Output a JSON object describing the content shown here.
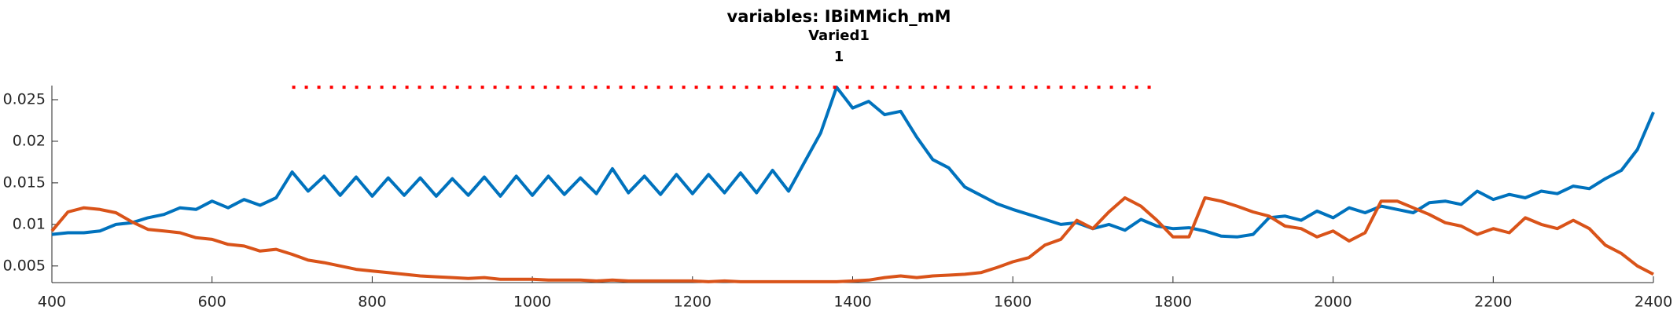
{
  "chart_data": {
    "type": "line",
    "title": "variables: IBiMMich_mM",
    "subtitle": "Varied1",
    "subtitle2": "1",
    "x": [
      400,
      420,
      440,
      460,
      480,
      500,
      520,
      540,
      560,
      580,
      600,
      620,
      640,
      660,
      680,
      700,
      720,
      740,
      760,
      780,
      800,
      820,
      840,
      860,
      880,
      900,
      920,
      940,
      960,
      980,
      1000,
      1020,
      1040,
      1060,
      1080,
      1100,
      1120,
      1140,
      1160,
      1180,
      1200,
      1220,
      1240,
      1260,
      1280,
      1300,
      1320,
      1340,
      1360,
      1380,
      1400,
      1420,
      1440,
      1460,
      1480,
      1500,
      1520,
      1540,
      1560,
      1580,
      1600,
      1620,
      1640,
      1660,
      1680,
      1700,
      1720,
      1740,
      1760,
      1780,
      1800,
      1820,
      1840,
      1860,
      1880,
      1900,
      1920,
      1940,
      1960,
      1980,
      2000,
      2020,
      2040,
      2060,
      2080,
      2100,
      2120,
      2140,
      2160,
      2180,
      2200,
      2220,
      2240,
      2260,
      2280,
      2300,
      2320,
      2340,
      2360,
      2380,
      2400
    ],
    "series": [
      {
        "color": "#0072BD",
        "linestyle": "solid",
        "values": [
          0.0088,
          0.009,
          0.009,
          0.0092,
          0.01,
          0.0102,
          0.0108,
          0.0112,
          0.012,
          0.0118,
          0.0128,
          0.012,
          0.013,
          0.0123,
          0.0132,
          0.0163,
          0.014,
          0.0158,
          0.0135,
          0.0157,
          0.0134,
          0.0156,
          0.0135,
          0.0156,
          0.0134,
          0.0155,
          0.0135,
          0.0157,
          0.0134,
          0.0158,
          0.0135,
          0.0158,
          0.0136,
          0.0156,
          0.0137,
          0.0167,
          0.0138,
          0.0158,
          0.0136,
          0.016,
          0.0137,
          0.016,
          0.0138,
          0.0162,
          0.0138,
          0.0165,
          0.014,
          0.0175,
          0.021,
          0.0265,
          0.024,
          0.0248,
          0.0232,
          0.0236,
          0.0205,
          0.0178,
          0.0168,
          0.0145,
          0.0135,
          0.0125,
          0.0118,
          0.0112,
          0.0106,
          0.01,
          0.0102,
          0.0095,
          0.01,
          0.0093,
          0.0106,
          0.0098,
          0.0095,
          0.0096,
          0.0092,
          0.0086,
          0.0085,
          0.0088,
          0.0108,
          0.011,
          0.0105,
          0.0116,
          0.0108,
          0.012,
          0.0114,
          0.0122,
          0.0118,
          0.0114,
          0.0126,
          0.0128,
          0.0124,
          0.014,
          0.013,
          0.0136,
          0.0132,
          0.014,
          0.0137,
          0.0146,
          0.0143,
          0.0155,
          0.0165,
          0.019,
          0.0235
        ]
      },
      {
        "color": "#D95319",
        "linestyle": "solid",
        "values": [
          0.0092,
          0.0115,
          0.012,
          0.0118,
          0.0114,
          0.0103,
          0.0094,
          0.0092,
          0.009,
          0.0084,
          0.0082,
          0.0076,
          0.0074,
          0.0068,
          0.007,
          0.0064,
          0.0057,
          0.0054,
          0.005,
          0.0046,
          0.0044,
          0.0042,
          0.004,
          0.0038,
          0.0037,
          0.0036,
          0.0035,
          0.0036,
          0.0034,
          0.0034,
          0.0034,
          0.0033,
          0.0033,
          0.0033,
          0.0032,
          0.0033,
          0.0032,
          0.0032,
          0.0032,
          0.0032,
          0.0032,
          0.0031,
          0.0032,
          0.0031,
          0.0031,
          0.0031,
          0.0031,
          0.0031,
          0.0031,
          0.0031,
          0.0032,
          0.0033,
          0.0036,
          0.0038,
          0.0036,
          0.0038,
          0.0039,
          0.004,
          0.0042,
          0.0048,
          0.0055,
          0.006,
          0.0075,
          0.0082,
          0.0105,
          0.0095,
          0.0115,
          0.0132,
          0.0122,
          0.0105,
          0.0085,
          0.0085,
          0.0132,
          0.0128,
          0.0122,
          0.0115,
          0.011,
          0.0098,
          0.0095,
          0.0085,
          0.0092,
          0.008,
          0.009,
          0.0128,
          0.0128,
          0.012,
          0.0112,
          0.0102,
          0.0098,
          0.0088,
          0.0095,
          0.009,
          0.0108,
          0.01,
          0.0095,
          0.0105,
          0.0095,
          0.0075,
          0.0065,
          0.005,
          0.004
        ]
      },
      {
        "color": "#FF0000",
        "linestyle": "dotted",
        "x": [
          700,
          1780
        ],
        "values": [
          0.0265,
          0.0265
        ]
      }
    ],
    "xlim": [
      400,
      2400
    ],
    "xticks": [
      400,
      600,
      800,
      1000,
      1200,
      1400,
      1600,
      1800,
      2000,
      2200,
      2400
    ],
    "ylim": [
      0.003,
      0.0267
    ],
    "yticks": [
      0.005,
      0.01,
      0.015,
      0.02,
      0.025
    ]
  }
}
